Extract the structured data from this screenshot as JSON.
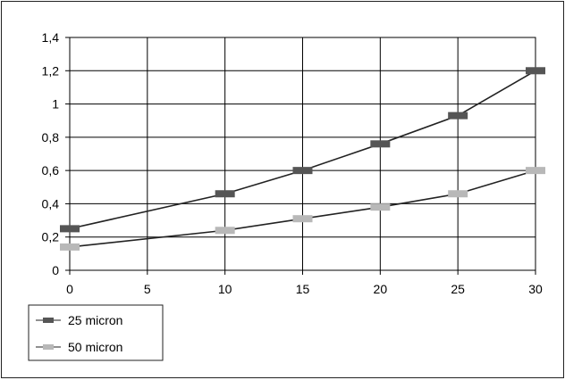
{
  "chart_data": {
    "type": "line",
    "title": "",
    "xlabel": "",
    "ylabel": "",
    "x": [
      0,
      10,
      15,
      20,
      25,
      30
    ],
    "x_ticks": [
      "0",
      "5",
      "10",
      "15",
      "20",
      "25",
      "30"
    ],
    "y_ticks": [
      "0",
      "0,2",
      "0,4",
      "0,6",
      "0,8",
      "1",
      "1,2",
      "1,4"
    ],
    "xlim": [
      0,
      30
    ],
    "ylim": [
      0,
      1.4
    ],
    "grid": "vertical and horizontal",
    "legend_position": "bottom-left",
    "series": [
      {
        "name": "25 micron",
        "color": "#222222",
        "marker_color": "#555555",
        "values": [
          0.25,
          0.46,
          0.6,
          0.76,
          0.93,
          1.2
        ]
      },
      {
        "name": "50 micron",
        "color": "#222222",
        "marker_color": "#b8b8b8",
        "values": [
          0.14,
          0.24,
          0.31,
          0.38,
          0.46,
          0.6
        ]
      }
    ]
  }
}
